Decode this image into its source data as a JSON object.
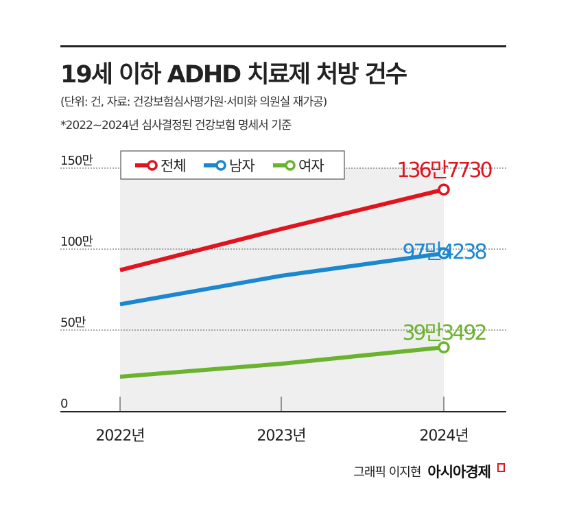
{
  "header": {
    "title": "19세 이하 ADHD 치료제 처방 건수",
    "source": "(단위: 건, 자료: 건강보험심사평가원·서미화 의원실 재가공)",
    "note": "*2022~2024년 심사결정된 건강보험 명세서 기준"
  },
  "chart_data": {
    "type": "line",
    "categories": [
      "2022년",
      "2023년",
      "2024년"
    ],
    "ylim": [
      0,
      1500000
    ],
    "yticks": [
      {
        "value": 0,
        "label": "0"
      },
      {
        "value": 500000,
        "label": "50만"
      },
      {
        "value": 1000000,
        "label": "100만"
      },
      {
        "value": 1500000,
        "label": "150만"
      }
    ],
    "grid": true,
    "legend": "top-left",
    "series": [
      {
        "name": "전체",
        "color": "#e0141e",
        "values": [
          870000,
          1124000,
          1367730
        ],
        "end_label": "136만7730"
      },
      {
        "name": "남자",
        "color": "#1b87cf",
        "values": [
          659000,
          835000,
          974238
        ],
        "end_label": "97만4238"
      },
      {
        "name": "여자",
        "color": "#6bb32e",
        "values": [
          212000,
          292000,
          393492
        ],
        "end_label": "39만3492"
      }
    ]
  },
  "footer": {
    "credit": "그래픽 이지현",
    "brand": "아시아경제"
  }
}
